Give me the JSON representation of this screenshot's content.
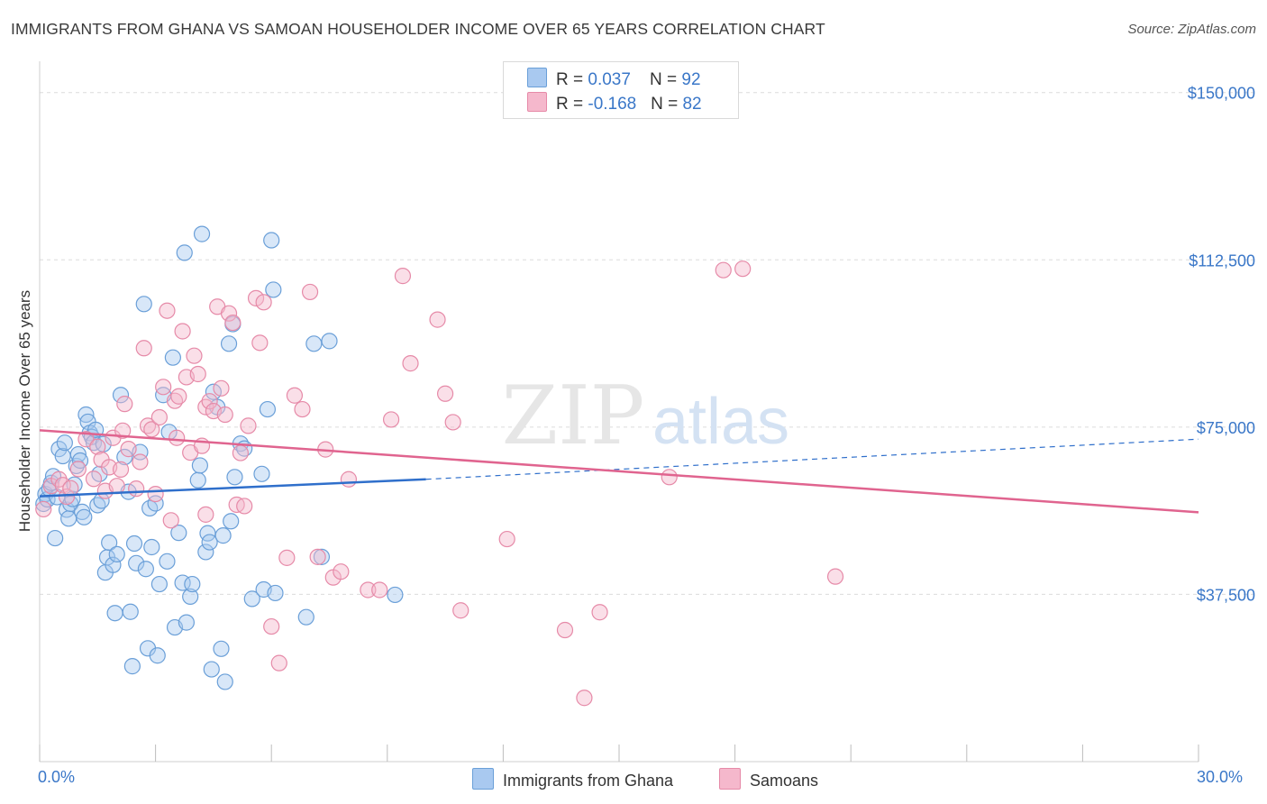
{
  "title": "IMMIGRANTS FROM GHANA VS SAMOAN HOUSEHOLDER INCOME OVER 65 YEARS CORRELATION CHART",
  "source": "Source: ZipAtlas.com",
  "watermark": {
    "zip": "ZIP",
    "atlas": "atlas"
  },
  "legend": {
    "ghana": {
      "r_label": "R = ",
      "r_value": "0.037",
      "n_label": "N = ",
      "n_value": "92"
    },
    "samoan": {
      "r_label": "R = ",
      "r_value": "-0.168",
      "n_label": "N = ",
      "n_value": "82"
    }
  },
  "colors": {
    "ghana_fill": "#a9c9f0",
    "ghana_stroke": "#6a9fd8",
    "ghana_line": "#2f6fcb",
    "samoan_fill": "#f5b8cc",
    "samoan_stroke": "#e68aa8",
    "samoan_line": "#e0648f",
    "axis_text": "#3a77c8",
    "grid": "#dcdcdc"
  },
  "chart_data": {
    "type": "scatter",
    "title": "IMMIGRANTS FROM GHANA VS SAMOAN HOUSEHOLDER INCOME OVER 65 YEARS CORRELATION CHART",
    "xlabel": "",
    "ylabel": "Householder Income Over 65 years",
    "xlim": [
      0,
      30
    ],
    "ylim": [
      0,
      155000
    ],
    "x_tick_labels": [
      "0.0%",
      "30.0%"
    ],
    "y_ticks": [
      37500,
      75000,
      112500,
      150000
    ],
    "y_tick_labels": [
      "$37,500",
      "$75,000",
      "$112,500",
      "$150,000"
    ],
    "series": [
      {
        "name": "Immigrants from Ghana",
        "trend": {
          "x0": 0,
          "y0": 59500,
          "x1": 10,
          "y1": 63300,
          "dashed_to_x": 30,
          "dashed_to_y": 72300
        },
        "points": [
          [
            0.1,
            57800
          ],
          [
            0.15,
            60000
          ],
          [
            0.2,
            58800
          ],
          [
            0.25,
            61200
          ],
          [
            0.3,
            62500
          ],
          [
            0.35,
            64000
          ],
          [
            0.4,
            50100
          ],
          [
            0.45,
            59300
          ],
          [
            0.5,
            70100
          ],
          [
            0.6,
            68500
          ],
          [
            0.65,
            71500
          ],
          [
            0.7,
            56500
          ],
          [
            0.75,
            54500
          ],
          [
            0.8,
            57800
          ],
          [
            0.85,
            58900
          ],
          [
            0.9,
            62100
          ],
          [
            0.95,
            66300
          ],
          [
            1.0,
            68900
          ],
          [
            1.05,
            67500
          ],
          [
            1.1,
            56000
          ],
          [
            1.15,
            54800
          ],
          [
            1.2,
            77800
          ],
          [
            1.25,
            76200
          ],
          [
            1.3,
            73700
          ],
          [
            1.35,
            72800
          ],
          [
            1.4,
            71500
          ],
          [
            1.45,
            74400
          ],
          [
            1.5,
            57500
          ],
          [
            1.55,
            64500
          ],
          [
            1.6,
            58500
          ],
          [
            1.65,
            71200
          ],
          [
            1.7,
            42400
          ],
          [
            1.75,
            45800
          ],
          [
            1.8,
            49100
          ],
          [
            1.9,
            44100
          ],
          [
            1.95,
            33300
          ],
          [
            2.0,
            46500
          ],
          [
            2.1,
            82200
          ],
          [
            2.2,
            68300
          ],
          [
            2.3,
            60500
          ],
          [
            2.35,
            33600
          ],
          [
            2.4,
            21400
          ],
          [
            2.45,
            48900
          ],
          [
            2.5,
            44500
          ],
          [
            2.6,
            69400
          ],
          [
            2.7,
            102600
          ],
          [
            2.75,
            43200
          ],
          [
            2.8,
            25400
          ],
          [
            2.85,
            56800
          ],
          [
            2.9,
            48100
          ],
          [
            3.0,
            57900
          ],
          [
            3.05,
            23800
          ],
          [
            3.1,
            39800
          ],
          [
            3.2,
            82200
          ],
          [
            3.3,
            44900
          ],
          [
            3.35,
            73900
          ],
          [
            3.45,
            90600
          ],
          [
            3.5,
            30100
          ],
          [
            3.6,
            51300
          ],
          [
            3.7,
            40100
          ],
          [
            3.75,
            114100
          ],
          [
            3.8,
            31200
          ],
          [
            3.9,
            37000
          ],
          [
            3.95,
            39800
          ],
          [
            4.1,
            63100
          ],
          [
            4.15,
            66400
          ],
          [
            4.2,
            118300
          ],
          [
            4.3,
            47000
          ],
          [
            4.35,
            51200
          ],
          [
            4.4,
            49200
          ],
          [
            4.45,
            20700
          ],
          [
            4.5,
            82900
          ],
          [
            4.6,
            79500
          ],
          [
            4.7,
            25300
          ],
          [
            4.75,
            50700
          ],
          [
            4.8,
            17900
          ],
          [
            4.9,
            93700
          ],
          [
            4.95,
            53900
          ],
          [
            5.0,
            98100
          ],
          [
            5.05,
            63800
          ],
          [
            5.2,
            71300
          ],
          [
            5.3,
            70200
          ],
          [
            5.5,
            36500
          ],
          [
            5.75,
            64500
          ],
          [
            5.8,
            38600
          ],
          [
            5.9,
            79000
          ],
          [
            6.0,
            116900
          ],
          [
            6.05,
            105800
          ],
          [
            6.1,
            37800
          ],
          [
            6.9,
            32400
          ],
          [
            7.1,
            93700
          ],
          [
            7.5,
            94300
          ],
          [
            7.3,
            45900
          ],
          [
            9.2,
            37400
          ]
        ]
      },
      {
        "name": "Samoans",
        "trend": {
          "x0": 0,
          "y0": 74300,
          "x1": 30,
          "y1": 55900
        },
        "points": [
          [
            0.1,
            56600
          ],
          [
            0.3,
            61800
          ],
          [
            0.5,
            63300
          ],
          [
            0.6,
            62000
          ],
          [
            0.7,
            59400
          ],
          [
            0.8,
            61300
          ],
          [
            1.0,
            65600
          ],
          [
            1.2,
            72300
          ],
          [
            1.4,
            63400
          ],
          [
            1.5,
            70600
          ],
          [
            1.6,
            67700
          ],
          [
            1.7,
            60700
          ],
          [
            1.8,
            66000
          ],
          [
            1.9,
            72600
          ],
          [
            2.0,
            61800
          ],
          [
            2.1,
            65500
          ],
          [
            2.2,
            80200
          ],
          [
            2.3,
            70100
          ],
          [
            2.5,
            61200
          ],
          [
            2.6,
            67200
          ],
          [
            2.7,
            92700
          ],
          [
            2.8,
            75300
          ],
          [
            2.9,
            74500
          ],
          [
            3.0,
            60000
          ],
          [
            3.1,
            77200
          ],
          [
            3.2,
            84000
          ],
          [
            3.3,
            101100
          ],
          [
            3.4,
            54100
          ],
          [
            3.5,
            80900
          ],
          [
            3.6,
            81900
          ],
          [
            3.7,
            96500
          ],
          [
            3.8,
            86200
          ],
          [
            3.9,
            69300
          ],
          [
            4.0,
            91000
          ],
          [
            4.1,
            86900
          ],
          [
            4.2,
            70800
          ],
          [
            4.3,
            79500
          ],
          [
            4.4,
            80800
          ],
          [
            4.5,
            78600
          ],
          [
            4.6,
            102000
          ],
          [
            4.7,
            83700
          ],
          [
            4.8,
            77800
          ],
          [
            4.9,
            100500
          ],
          [
            5.0,
            98400
          ],
          [
            5.1,
            57600
          ],
          [
            5.2,
            69200
          ],
          [
            5.3,
            57300
          ],
          [
            5.4,
            75300
          ],
          [
            5.6,
            103900
          ],
          [
            5.7,
            93900
          ],
          [
            5.8,
            103000
          ],
          [
            6.0,
            30300
          ],
          [
            6.2,
            22100
          ],
          [
            6.4,
            45700
          ],
          [
            6.6,
            82100
          ],
          [
            6.8,
            79000
          ],
          [
            7.0,
            105300
          ],
          [
            7.2,
            45900
          ],
          [
            7.4,
            70000
          ],
          [
            7.6,
            41300
          ],
          [
            7.8,
            42600
          ],
          [
            8.0,
            63300
          ],
          [
            8.5,
            38500
          ],
          [
            8.8,
            38500
          ],
          [
            9.1,
            76700
          ],
          [
            9.4,
            108900
          ],
          [
            9.6,
            89300
          ],
          [
            10.3,
            99100
          ],
          [
            10.5,
            82500
          ],
          [
            10.7,
            76100
          ],
          [
            10.9,
            33900
          ],
          [
            12.1,
            49900
          ],
          [
            13.6,
            29500
          ],
          [
            14.1,
            14300
          ],
          [
            14.5,
            33500
          ],
          [
            16.3,
            63800
          ],
          [
            17.7,
            110200
          ],
          [
            18.2,
            110500
          ],
          [
            20.6,
            41500
          ],
          [
            4.3,
            55400
          ],
          [
            3.55,
            72600
          ],
          [
            2.15,
            74200
          ]
        ]
      }
    ],
    "legend": [
      {
        "name": "Immigrants from Ghana",
        "R": 0.037,
        "N": 92
      },
      {
        "name": "Samoans",
        "R": -0.168,
        "N": 82
      }
    ]
  },
  "bottom_legend": {
    "ghana": "Immigrants from Ghana",
    "samoan": "Samoans"
  }
}
